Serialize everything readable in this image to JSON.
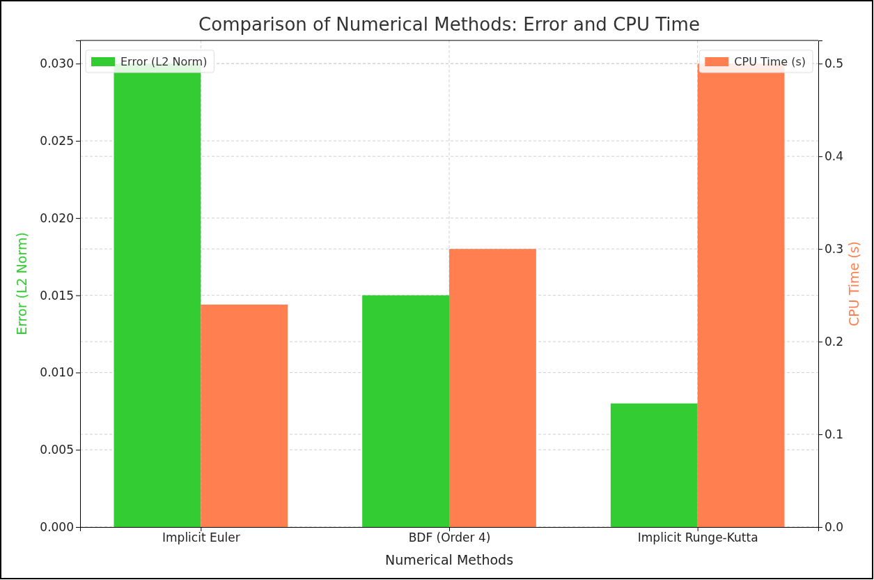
{
  "chart_data": {
    "type": "bar",
    "title": "Comparison of Numerical Methods: Error and CPU Time",
    "xlabel": "Numerical Methods",
    "ylabel": "Error (L2 Norm)",
    "y2label": "CPU Time (s)",
    "categories": [
      "Implicit Euler",
      "BDF (Order 4)",
      "Implicit Runge-Kutta"
    ],
    "series": [
      {
        "name": "Error (L2 Norm)",
        "color": "#33cc33",
        "values": [
          0.03,
          0.015,
          0.008
        ]
      },
      {
        "name": "CPU Time (s)",
        "color": "#ff7f50",
        "values": [
          0.24,
          0.3,
          0.5
        ],
        "axis": "y2"
      }
    ],
    "ylim": [
      0,
      0.0315
    ],
    "yticks": [
      {
        "value": 0,
        "label": "0.000"
      },
      {
        "value": 0.005,
        "label": "0.005"
      },
      {
        "value": 0.01,
        "label": "0.010"
      },
      {
        "value": 0.015,
        "label": "0.015"
      },
      {
        "value": 0.02,
        "label": "0.020"
      },
      {
        "value": 0.025,
        "label": "0.025"
      },
      {
        "value": 0.03,
        "label": "0.030"
      }
    ],
    "y2lim": [
      0,
      0.525
    ],
    "y2ticks": [
      {
        "value": 0,
        "label": "0.0"
      },
      {
        "value": 0.1,
        "label": "0.1"
      },
      {
        "value": 0.2,
        "label": "0.2"
      },
      {
        "value": 0.3,
        "label": "0.3"
      },
      {
        "value": 0.4,
        "label": "0.4"
      },
      {
        "value": 0.5,
        "label": "0.5"
      }
    ],
    "grid": true,
    "legend": "top"
  }
}
